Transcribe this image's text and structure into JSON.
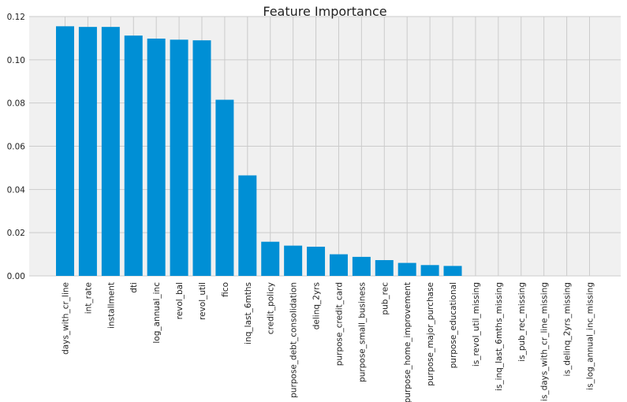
{
  "chart_data": {
    "type": "bar",
    "title": "Feature Importance",
    "xlabel": "",
    "ylabel": "",
    "ylim": [
      0,
      0.12
    ],
    "yticks": [
      "0.00",
      "0.02",
      "0.04",
      "0.06",
      "0.08",
      "0.10",
      "0.12"
    ],
    "grid": true,
    "bar_color": "#008fd5",
    "background_color": "#f0f0f0",
    "grid_color": "#cbcbcb",
    "categories": [
      "days_with_cr_line",
      "int_rate",
      "installment",
      "dti",
      "log_annual_inc",
      "revol_bal",
      "revol_util",
      "fico",
      "inq_last_6mths",
      "credit_policy",
      "purpose_debt_consolidation",
      "delinq_2yrs",
      "purpose_credit_card",
      "purpose_small_business",
      "pub_rec",
      "purpose_home_improvement",
      "purpose_major_purchase",
      "purpose_educational",
      "is_revol_util_missing",
      "is_inq_last_6mths_missing",
      "is_pub_rec_missing",
      "is_days_with_cr_line_missing",
      "is_delinq_2yrs_missing",
      "is_log_annual_inc_missing"
    ],
    "values": [
      0.1155,
      0.1152,
      0.1152,
      0.1112,
      0.1098,
      0.1093,
      0.109,
      0.0815,
      0.0465,
      0.0158,
      0.014,
      0.0135,
      0.01,
      0.0088,
      0.0073,
      0.006,
      0.005,
      0.0046,
      0.0,
      0.0,
      0.0,
      0.0,
      0.0,
      0.0
    ]
  }
}
